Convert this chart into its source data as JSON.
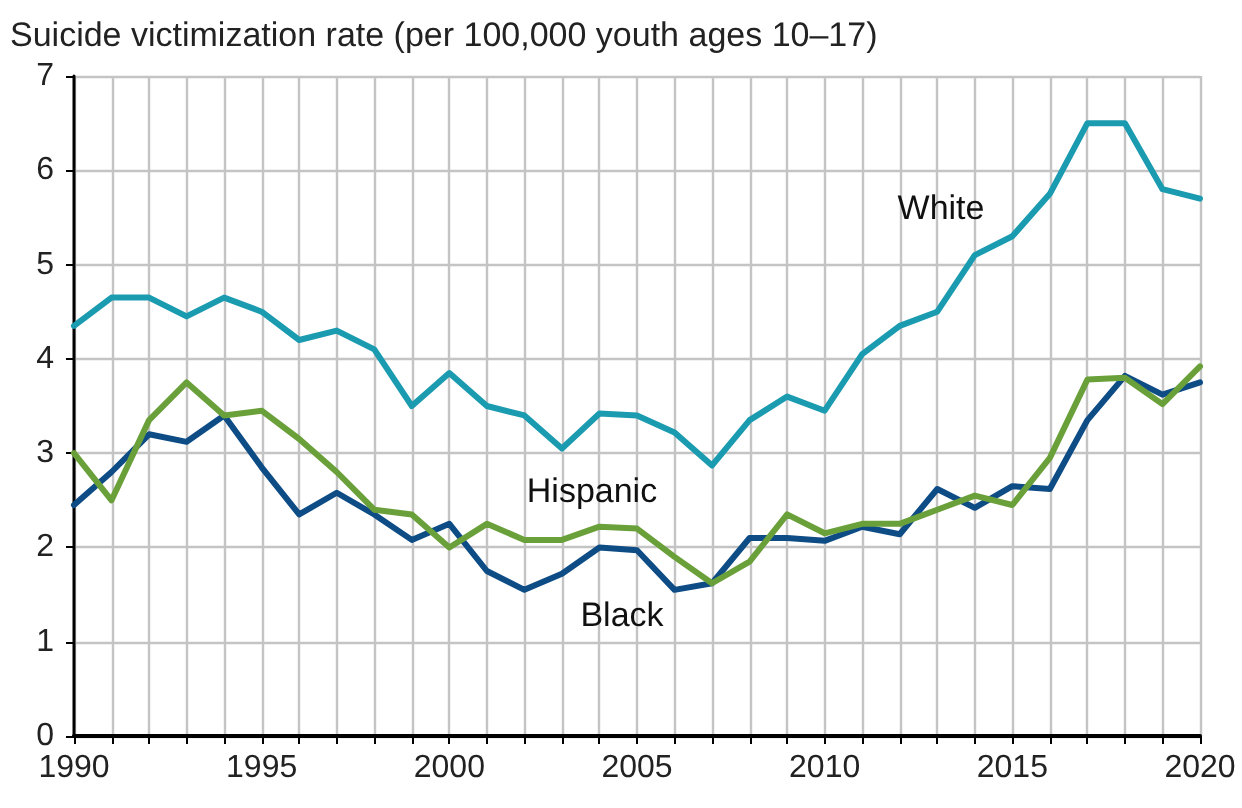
{
  "chart_data": {
    "type": "line",
    "title": "Suicide victimization rate (per 100,000 youth ages 10–17)",
    "x": [
      1990,
      1991,
      1992,
      1993,
      1994,
      1995,
      1996,
      1997,
      1998,
      1999,
      2000,
      2001,
      2002,
      2003,
      2004,
      2005,
      2006,
      2007,
      2008,
      2009,
      2010,
      2011,
      2012,
      2013,
      2014,
      2015,
      2016,
      2017,
      2018,
      2019,
      2020
    ],
    "series": [
      {
        "name": "White",
        "color": "#1b9bb0",
        "values": [
          4.35,
          4.65,
          4.65,
          4.45,
          4.65,
          4.5,
          4.2,
          4.3,
          4.1,
          3.5,
          3.85,
          3.5,
          3.4,
          3.05,
          3.42,
          3.4,
          3.22,
          2.87,
          3.35,
          3.6,
          3.45,
          4.05,
          4.35,
          4.5,
          5.1,
          5.3,
          5.75,
          6.5,
          6.5,
          5.8,
          5.7
        ]
      },
      {
        "name": "Black",
        "color": "#0e4c86",
        "values": [
          2.45,
          2.8,
          3.2,
          3.12,
          3.4,
          2.85,
          2.35,
          2.58,
          2.35,
          2.08,
          2.25,
          1.75,
          1.55,
          1.72,
          2.0,
          1.97,
          1.55,
          1.62,
          2.1,
          2.1,
          2.07,
          2.22,
          2.14,
          2.62,
          2.42,
          2.65,
          2.62,
          3.35,
          3.82,
          3.62,
          3.75
        ]
      },
      {
        "name": "Hispanic",
        "color": "#6aa03a",
        "values": [
          3.0,
          2.5,
          3.35,
          3.75,
          3.4,
          3.45,
          3.15,
          2.8,
          2.4,
          2.35,
          2.0,
          2.25,
          2.08,
          2.08,
          2.22,
          2.2,
          1.9,
          1.62,
          1.85,
          2.35,
          2.15,
          2.25,
          2.25,
          2.4,
          2.55,
          2.45,
          2.95,
          3.78,
          3.8,
          3.52,
          3.92
        ]
      }
    ],
    "xlim": [
      1990,
      2020
    ],
    "xticks": [
      1990,
      {
        "value": 1991,
        "label": null
      },
      {
        "value": 1992,
        "label": null
      },
      {
        "value": 1993,
        "label": null
      },
      {
        "value": 1994,
        "label": null
      },
      1995,
      {
        "value": 1996,
        "label": null
      },
      {
        "value": 1997,
        "label": null
      },
      {
        "value": 1998,
        "label": null
      },
      {
        "value": 1999,
        "label": null
      },
      2000,
      {
        "value": 2001,
        "label": null
      },
      {
        "value": 2002,
        "label": null
      },
      {
        "value": 2003,
        "label": null
      },
      {
        "value": 2004,
        "label": null
      },
      2005,
      {
        "value": 2006,
        "label": null
      },
      {
        "value": 2007,
        "label": null
      },
      {
        "value": 2008,
        "label": null
      },
      {
        "value": 2009,
        "label": null
      },
      2010,
      {
        "value": 2011,
        "label": null
      },
      {
        "value": 2012,
        "label": null
      },
      {
        "value": 2013,
        "label": null
      },
      {
        "value": 2014,
        "label": null
      },
      2015,
      {
        "value": 2016,
        "label": null
      },
      {
        "value": 2017,
        "label": null
      },
      {
        "value": 2018,
        "label": null
      },
      {
        "value": 2019,
        "label": null
      },
      2020
    ],
    "ylim": [
      0,
      7
    ],
    "yticks": [
      0,
      1,
      2,
      3,
      4,
      5,
      6,
      7
    ],
    "grid": true,
    "legend": false,
    "marker": "none",
    "line_style": "solid"
  }
}
